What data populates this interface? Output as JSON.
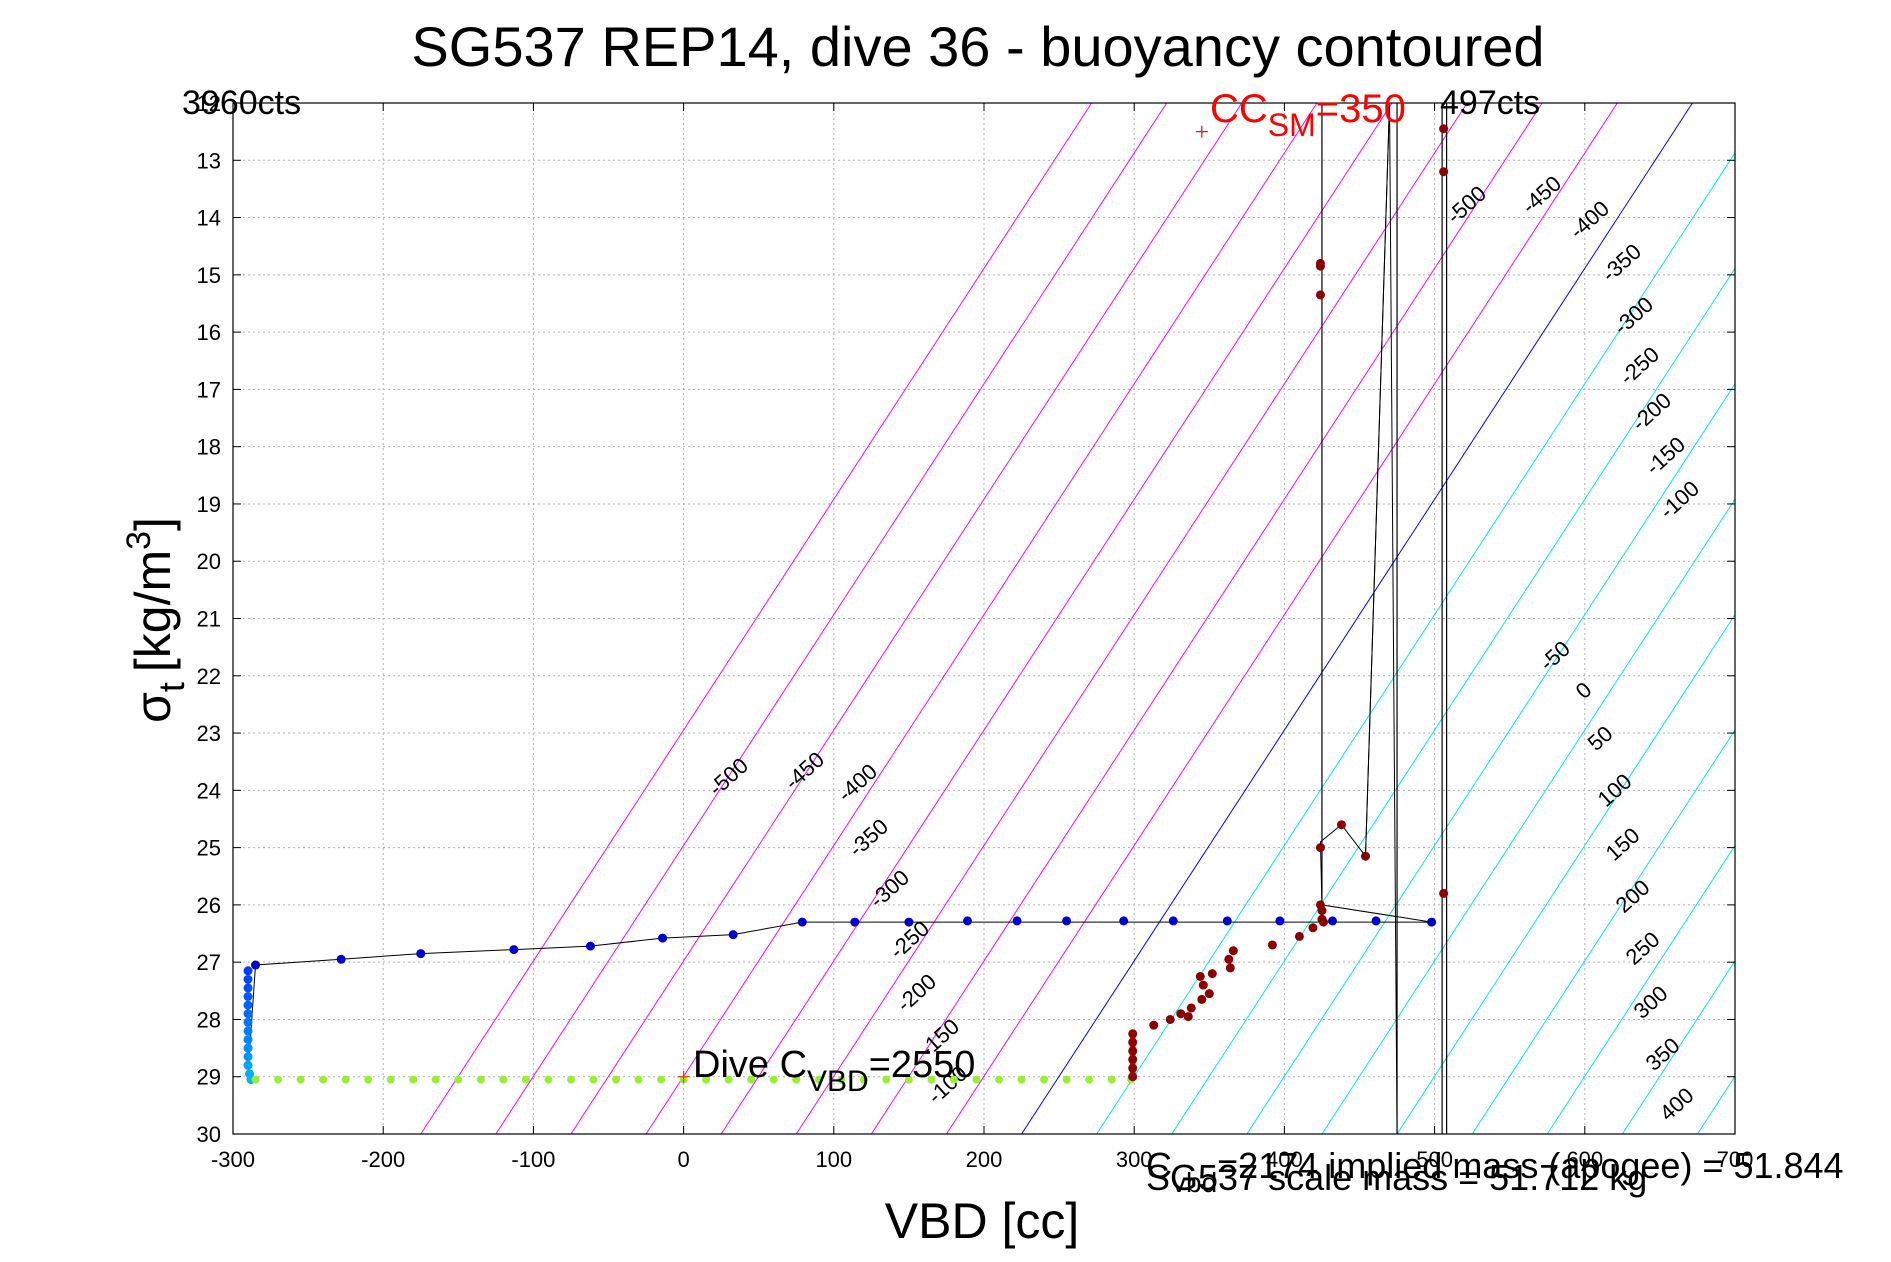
{
  "chart_data": {
    "type": "scatter",
    "title": "SG537 REP14, dive 36 - buoyancy contoured",
    "xlabel": "VBD [cc]",
    "ylabel_symbol": "σ",
    "ylabel_sub": "t",
    "ylabel_units": "[kg/m",
    "ylabel_sup": "3",
    "ylabel_close": "]",
    "xlim": [
      -300,
      700
    ],
    "ylim": [
      12,
      30
    ],
    "grid": true,
    "x_ticks": [
      -300,
      -200,
      -100,
      0,
      100,
      200,
      300,
      400,
      500,
      600,
      700
    ],
    "y_ticks": [
      12,
      13,
      14,
      15,
      16,
      17,
      18,
      19,
      20,
      21,
      22,
      23,
      24,
      25,
      26,
      27,
      28,
      29,
      30
    ],
    "colors": {
      "negative_contour": "#00e5ee",
      "zero_contour": "#0000ff",
      "positive_contour": "#ff00ff",
      "annotation_red": "#ff0000",
      "descent_points": "#0000cc",
      "ascent_points": "#8b0000",
      "apogee_points": "#99ee33"
    },
    "contours": {
      "slope_sigma_per_cc": 0.0403,
      "zero_line_vbd_at_sigma_30": 225,
      "spacing_cc": 50,
      "values": [
        -1000,
        -950,
        -900,
        -850,
        -800,
        -750,
        -700,
        -650,
        -600,
        -550,
        -500,
        -450,
        -400,
        -350,
        -300,
        -250,
        -200,
        -150,
        -100,
        -50,
        0,
        50,
        100,
        150,
        200,
        250,
        300,
        350,
        400
      ],
      "label_sets": [
        {
          "labels": [
            "-500",
            "-450",
            "-400",
            "-350",
            "-300",
            "-250",
            "-200",
            "-150",
            "-100"
          ],
          "placement": "upper-right"
        },
        {
          "labels": [
            "-500",
            "-450",
            "-400",
            "-350",
            "-300",
            "-250",
            "-200",
            "-150",
            "-100"
          ],
          "placement": "middle"
        },
        {
          "labels": [
            "-50",
            "0",
            "50",
            "100",
            "150",
            "200",
            "250",
            "300",
            "350",
            "400"
          ],
          "placement": "right-edge"
        }
      ]
    },
    "annotations": {
      "min_counts": "3960cts",
      "max_counts": "497cts",
      "cc_sm_prefix": "CC",
      "cc_sm_sub": "SM",
      "cc_sm_value": "=350",
      "dive_cvbd_prefix": "Dive C",
      "dive_cvbd_sub": "VBD",
      "dive_cvbd_value": "=2550",
      "bottom_text_1": "SG537 scale mass = 51.712 kg",
      "bottom_text_2_prefix": "C",
      "bottom_text_2_sub": "vbd",
      "bottom_text_2": "=2174 implied mass (apogee) = 51.844",
      "cc_sm_marker": {
        "x": 345,
        "y": 12.5
      },
      "dive_marker": {
        "x": 0,
        "y": 29.0
      }
    },
    "vertical_lines": [
      {
        "x": 425,
        "y_from": 12,
        "y_to": 26.3
      },
      {
        "x": 475,
        "y_from": 12,
        "y_to": 30
      },
      {
        "x": 505,
        "y_from": 12,
        "y_to": 30
      },
      {
        "x": 508,
        "y_from": 12,
        "y_to": 30
      }
    ],
    "series": [
      {
        "name": "descent-blue",
        "values": [
          [
            -290,
            27.15
          ],
          [
            -290,
            27.3
          ],
          [
            -290,
            27.45
          ],
          [
            -290,
            27.6
          ],
          [
            -290,
            27.75
          ],
          [
            -290,
            27.9
          ],
          [
            -290,
            28.05
          ],
          [
            -290,
            28.2
          ],
          [
            -290,
            28.35
          ],
          [
            -290,
            28.5
          ],
          [
            -290,
            28.65
          ],
          [
            -290,
            28.8
          ],
          [
            -289,
            28.95
          ],
          [
            -288,
            29.05
          ],
          [
            -285,
            27.05
          ],
          [
            -228,
            26.95
          ],
          [
            -175,
            26.85
          ],
          [
            -113,
            26.78
          ],
          [
            -62,
            26.72
          ],
          [
            -14,
            26.58
          ],
          [
            33,
            26.52
          ],
          [
            79,
            26.3
          ],
          [
            114,
            26.3
          ],
          [
            150,
            26.3
          ],
          [
            189,
            26.28
          ],
          [
            222,
            26.28
          ],
          [
            255,
            26.28
          ],
          [
            293,
            26.28
          ],
          [
            326,
            26.28
          ],
          [
            362,
            26.28
          ],
          [
            397,
            26.28
          ],
          [
            432,
            26.28
          ],
          [
            461,
            26.28
          ],
          [
            498,
            26.3
          ]
        ]
      },
      {
        "name": "apogee-green",
        "values": [
          [
            -285,
            29.05
          ],
          [
            -270,
            29.05
          ],
          [
            -255,
            29.05
          ],
          [
            -240,
            29.05
          ],
          [
            -225,
            29.05
          ],
          [
            -210,
            29.05
          ],
          [
            -195,
            29.05
          ],
          [
            -180,
            29.05
          ],
          [
            -165,
            29.05
          ],
          [
            -150,
            29.05
          ],
          [
            -135,
            29.05
          ],
          [
            -120,
            29.05
          ],
          [
            -105,
            29.05
          ],
          [
            -90,
            29.05
          ],
          [
            -75,
            29.05
          ],
          [
            -60,
            29.05
          ],
          [
            -45,
            29.05
          ],
          [
            -30,
            29.05
          ],
          [
            -15,
            29.05
          ],
          [
            0,
            29.05
          ],
          [
            15,
            29.05
          ],
          [
            30,
            29.05
          ],
          [
            45,
            29.05
          ],
          [
            60,
            29.05
          ],
          [
            75,
            29.05
          ],
          [
            90,
            29.05
          ],
          [
            105,
            29.05
          ],
          [
            120,
            29.05
          ],
          [
            135,
            29.05
          ],
          [
            150,
            29.05
          ],
          [
            165,
            29.05
          ],
          [
            180,
            29.05
          ],
          [
            195,
            29.05
          ],
          [
            210,
            29.05
          ],
          [
            225,
            29.05
          ],
          [
            240,
            29.05
          ],
          [
            255,
            29.05
          ],
          [
            270,
            29.05
          ],
          [
            285,
            29.05
          ],
          [
            298,
            29.05
          ]
        ]
      },
      {
        "name": "ascent-red",
        "values": [
          [
            299,
            29.0
          ],
          [
            299,
            28.85
          ],
          [
            299,
            28.7
          ],
          [
            299,
            28.55
          ],
          [
            299,
            28.4
          ],
          [
            299,
            28.25
          ],
          [
            313,
            28.1
          ],
          [
            324,
            28.0
          ],
          [
            331,
            27.9
          ],
          [
            338,
            27.8
          ],
          [
            336,
            27.95
          ],
          [
            345,
            27.65
          ],
          [
            350,
            27.55
          ],
          [
            346,
            27.4
          ],
          [
            344,
            27.25
          ],
          [
            352,
            27.2
          ],
          [
            364,
            27.1
          ],
          [
            363,
            26.95
          ],
          [
            366,
            26.8
          ],
          [
            392,
            26.7
          ],
          [
            410,
            26.55
          ],
          [
            419,
            26.4
          ],
          [
            426,
            26.3
          ],
          [
            425,
            26.25
          ],
          [
            425,
            26.1
          ],
          [
            424,
            26.0
          ],
          [
            424,
            25.0
          ],
          [
            438,
            24.6
          ],
          [
            454,
            25.15
          ],
          [
            424,
            15.35
          ],
          [
            424,
            14.85
          ],
          [
            424,
            14.8
          ],
          [
            506,
            12.45
          ],
          [
            506,
            13.2
          ],
          [
            506,
            25.8
          ]
        ]
      }
    ],
    "trace_line": [
      [
        -290,
        28.95
      ],
      [
        -285,
        27.05
      ],
      [
        -228,
        26.95
      ],
      [
        -175,
        26.85
      ],
      [
        -113,
        26.78
      ],
      [
        -62,
        26.72
      ],
      [
        -14,
        26.58
      ],
      [
        33,
        26.52
      ],
      [
        79,
        26.3
      ],
      [
        114,
        26.3
      ],
      [
        150,
        26.3
      ],
      [
        498,
        26.3
      ],
      [
        425,
        26.0
      ],
      [
        424,
        24.9
      ],
      [
        438,
        24.6
      ],
      [
        454,
        25.15
      ],
      [
        470,
        12.0
      ]
    ]
  }
}
